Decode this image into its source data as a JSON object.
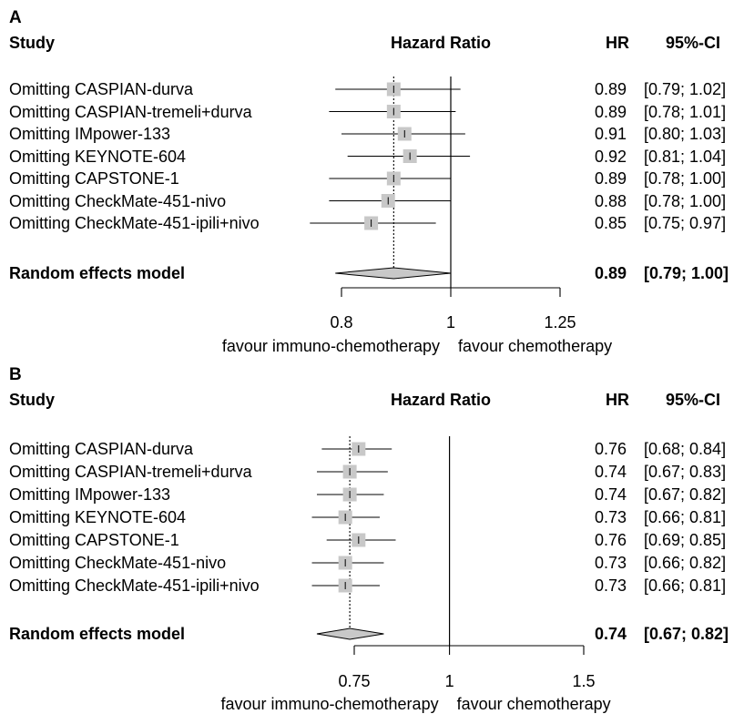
{
  "chart_data": [
    {
      "type": "forest",
      "panel_label": "A",
      "headers": {
        "study": "Study",
        "effect": "Hazard Ratio",
        "hr": "HR",
        "ci": "95%-CI"
      },
      "rows": [
        {
          "study": "Omitting CASPIAN-durva",
          "hr": 0.89,
          "lower": 0.79,
          "upper": 1.02,
          "hr_text": "0.89",
          "ci_text": "[0.79; 1.02]"
        },
        {
          "study": "Omitting CASPIAN-tremeli+durva",
          "hr": 0.89,
          "lower": 0.78,
          "upper": 1.01,
          "hr_text": "0.89",
          "ci_text": "[0.78; 1.01]"
        },
        {
          "study": "Omitting IMpower-133",
          "hr": 0.91,
          "lower": 0.8,
          "upper": 1.03,
          "hr_text": "0.91",
          "ci_text": "[0.80; 1.03]"
        },
        {
          "study": "Omitting KEYNOTE-604",
          "hr": 0.92,
          "lower": 0.81,
          "upper": 1.04,
          "hr_text": "0.92",
          "ci_text": "[0.81; 1.04]"
        },
        {
          "study": "Omitting CAPSTONE-1",
          "hr": 0.89,
          "lower": 0.78,
          "upper": 1.0,
          "hr_text": "0.89",
          "ci_text": "[0.78; 1.00]"
        },
        {
          "study": "Omitting CheckMate-451-nivo",
          "hr": 0.88,
          "lower": 0.78,
          "upper": 1.0,
          "hr_text": "0.88",
          "ci_text": "[0.78; 1.00]"
        },
        {
          "study": "Omitting CheckMate-451-ipili+nivo",
          "hr": 0.85,
          "lower": 0.75,
          "upper": 0.97,
          "hr_text": "0.85",
          "ci_text": "[0.75; 0.97]"
        }
      ],
      "summary": {
        "label": "Random effects model",
        "hr": 0.89,
        "lower": 0.79,
        "upper": 1.0,
        "hr_text": "0.89",
        "ci_text": "[0.79; 1.00]"
      },
      "x_scale": "log",
      "xlim": [
        0.8,
        1.25
      ],
      "ticks": [
        0.8,
        1,
        1.25
      ],
      "tick_labels": [
        "0.8",
        "1",
        "1.25"
      ],
      "reference_line": 1,
      "axis_captions": {
        "left": "favour immuno-chemotherapy",
        "right": "favour chemotherapy"
      }
    },
    {
      "type": "forest",
      "panel_label": "B",
      "headers": {
        "study": "Study",
        "effect": "Hazard Ratio",
        "hr": "HR",
        "ci": "95%-CI"
      },
      "rows": [
        {
          "study": "Omitting CASPIAN-durva",
          "hr": 0.76,
          "lower": 0.68,
          "upper": 0.84,
          "hr_text": "0.76",
          "ci_text": "[0.68; 0.84]"
        },
        {
          "study": "Omitting CASPIAN-tremeli+durva",
          "hr": 0.74,
          "lower": 0.67,
          "upper": 0.83,
          "hr_text": "0.74",
          "ci_text": "[0.67; 0.83]"
        },
        {
          "study": "Omitting IMpower-133",
          "hr": 0.74,
          "lower": 0.67,
          "upper": 0.82,
          "hr_text": "0.74",
          "ci_text": "[0.67; 0.82]"
        },
        {
          "study": "Omitting KEYNOTE-604",
          "hr": 0.73,
          "lower": 0.66,
          "upper": 0.81,
          "hr_text": "0.73",
          "ci_text": "[0.66; 0.81]"
        },
        {
          "study": "Omitting CAPSTONE-1",
          "hr": 0.76,
          "lower": 0.69,
          "upper": 0.85,
          "hr_text": "0.76",
          "ci_text": "[0.69; 0.85]"
        },
        {
          "study": "Omitting CheckMate-451-nivo",
          "hr": 0.73,
          "lower": 0.66,
          "upper": 0.82,
          "hr_text": "0.73",
          "ci_text": "[0.66; 0.82]"
        },
        {
          "study": "Omitting CheckMate-451-ipili+nivo",
          "hr": 0.73,
          "lower": 0.66,
          "upper": 0.81,
          "hr_text": "0.73",
          "ci_text": "[0.66; 0.81]"
        }
      ],
      "summary": {
        "label": "Random effects model",
        "hr": 0.74,
        "lower": 0.67,
        "upper": 0.82,
        "hr_text": "0.74",
        "ci_text": "[0.67; 0.82]"
      },
      "x_scale": "log",
      "xlim": [
        0.75,
        1.5
      ],
      "ticks": [
        0.75,
        1,
        1.5
      ],
      "tick_labels": [
        "0.75",
        "1",
        "1.5"
      ],
      "reference_line": 1,
      "axis_captions": {
        "left": "favour immuno-chemotherapy",
        "right": "favour chemotherapy"
      }
    }
  ],
  "colors": {
    "box": "#c8c8c8",
    "diamond": "#c8c8c8",
    "line": "#000000"
  }
}
